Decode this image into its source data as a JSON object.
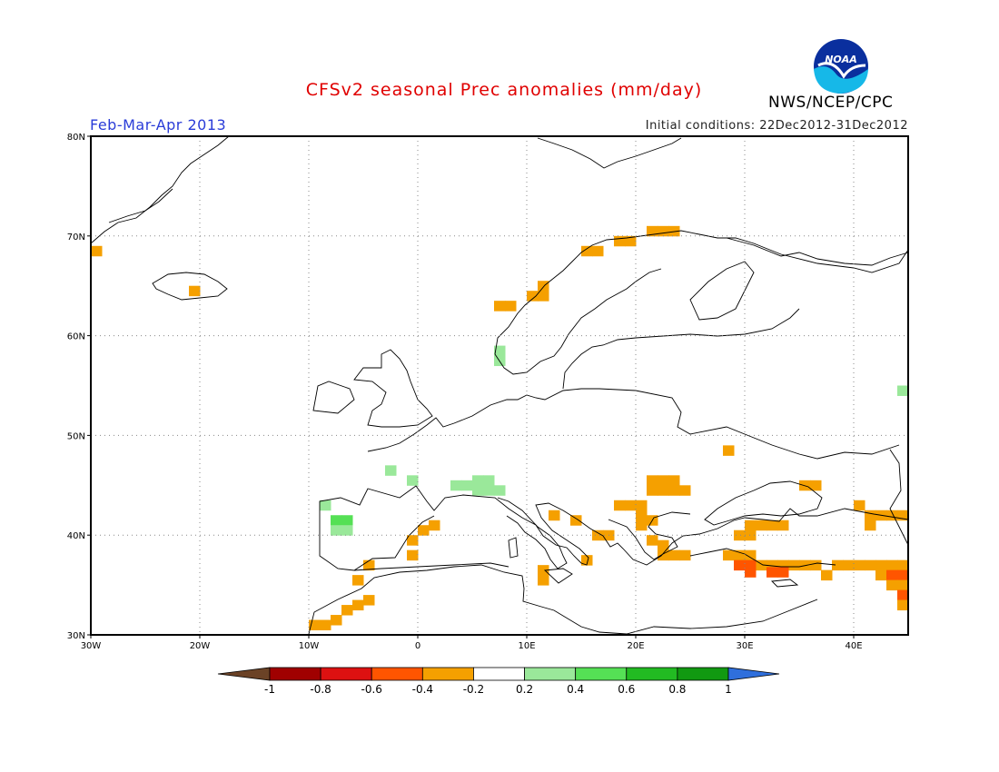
{
  "title": "CFSv2 seasonal Prec anomalies (mm/day)",
  "organization": "NWS/NCEP/CPC",
  "logo_text": "NOAA",
  "season": "Feb-Mar-Apr 2013",
  "initial_conditions": "Initial conditions: 22Dec2012-31Dec2012",
  "map": {
    "lon_range": [
      -30,
      45
    ],
    "lat_range": [
      30,
      80
    ],
    "lon_ticks": [
      {
        "v": -30,
        "label": "30W"
      },
      {
        "v": -20,
        "label": "20W"
      },
      {
        "v": -10,
        "label": "10W"
      },
      {
        "v": 0,
        "label": "0"
      },
      {
        "v": 10,
        "label": "10E"
      },
      {
        "v": 20,
        "label": "20E"
      },
      {
        "v": 30,
        "label": "30E"
      },
      {
        "v": 40,
        "label": "40E"
      }
    ],
    "lat_ticks": [
      {
        "v": 30,
        "label": "30N"
      },
      {
        "v": 40,
        "label": "40N"
      },
      {
        "v": 50,
        "label": "50N"
      },
      {
        "v": 60,
        "label": "60N"
      },
      {
        "v": 70,
        "label": "70N"
      },
      {
        "v": 80,
        "label": "80N"
      }
    ],
    "anomaly_cells": [
      {
        "lon": -30,
        "lat": 68.5,
        "c": "#f5a000"
      },
      {
        "lon": -21,
        "lat": 64.5,
        "c": "#f5a000"
      },
      {
        "lon": -8,
        "lat": 41.5,
        "c": "#55e055"
      },
      {
        "lon": -7,
        "lat": 41.5,
        "c": "#55e055"
      },
      {
        "lon": -8,
        "lat": 40.5,
        "c": "#9ae89a"
      },
      {
        "lon": -7,
        "lat": 40.5,
        "c": "#9ae89a"
      },
      {
        "lon": -9,
        "lat": 43,
        "c": "#9ae89a"
      },
      {
        "lon": -10,
        "lat": 31,
        "c": "#f5a000"
      },
      {
        "lon": -9,
        "lat": 31,
        "c": "#f5a000"
      },
      {
        "lon": -8,
        "lat": 31.5,
        "c": "#f5a000"
      },
      {
        "lon": -7,
        "lat": 32.5,
        "c": "#f5a000"
      },
      {
        "lon": -6,
        "lat": 33,
        "c": "#f5a000"
      },
      {
        "lon": -5,
        "lat": 33.5,
        "c": "#f5a000"
      },
      {
        "lon": -6,
        "lat": 35.5,
        "c": "#f5a000"
      },
      {
        "lon": -5,
        "lat": 37,
        "c": "#f5a000"
      },
      {
        "lon": -1,
        "lat": 38,
        "c": "#f5a000"
      },
      {
        "lon": -1,
        "lat": 39.5,
        "c": "#f5a000"
      },
      {
        "lon": 0,
        "lat": 40.5,
        "c": "#f5a000"
      },
      {
        "lon": 1,
        "lat": 41,
        "c": "#f5a000"
      },
      {
        "lon": -3,
        "lat": 46.5,
        "c": "#9ae89a"
      },
      {
        "lon": -1,
        "lat": 45.5,
        "c": "#9ae89a"
      },
      {
        "lon": 3,
        "lat": 45,
        "c": "#9ae89a"
      },
      {
        "lon": 4,
        "lat": 45,
        "c": "#9ae89a"
      },
      {
        "lon": 5,
        "lat": 45.5,
        "c": "#9ae89a"
      },
      {
        "lon": 5,
        "lat": 44.5,
        "c": "#9ae89a"
      },
      {
        "lon": 6,
        "lat": 44.5,
        "c": "#9ae89a"
      },
      {
        "lon": 7,
        "lat": 44.5,
        "c": "#9ae89a"
      },
      {
        "lon": 6,
        "lat": 45.5,
        "c": "#9ae89a"
      },
      {
        "lon": 7,
        "lat": 58.5,
        "c": "#9ae89a"
      },
      {
        "lon": 7,
        "lat": 57.5,
        "c": "#9ae89a"
      },
      {
        "lon": 7,
        "lat": 63,
        "c": "#f5a000"
      },
      {
        "lon": 8,
        "lat": 63,
        "c": "#f5a000"
      },
      {
        "lon": 10,
        "lat": 64,
        "c": "#f5a000"
      },
      {
        "lon": 11,
        "lat": 64,
        "c": "#f5a000"
      },
      {
        "lon": 11,
        "lat": 65,
        "c": "#f5a000"
      },
      {
        "lon": 15,
        "lat": 68.5,
        "c": "#f5a000"
      },
      {
        "lon": 16,
        "lat": 68.5,
        "c": "#f5a000"
      },
      {
        "lon": 18,
        "lat": 69.5,
        "c": "#f5a000"
      },
      {
        "lon": 19,
        "lat": 69.5,
        "c": "#f5a000"
      },
      {
        "lon": 21,
        "lat": 70.5,
        "c": "#f5a000"
      },
      {
        "lon": 22,
        "lat": 70.5,
        "c": "#f5a000"
      },
      {
        "lon": 23,
        "lat": 70.5,
        "c": "#f5a000"
      },
      {
        "lon": 11,
        "lat": 36.5,
        "c": "#f5a000"
      },
      {
        "lon": 11,
        "lat": 35.5,
        "c": "#f5a000"
      },
      {
        "lon": 12,
        "lat": 42,
        "c": "#f5a000"
      },
      {
        "lon": 14,
        "lat": 41.5,
        "c": "#f5a000"
      },
      {
        "lon": 15,
        "lat": 37.5,
        "c": "#f5a000"
      },
      {
        "lon": 16,
        "lat": 40,
        "c": "#f5a000"
      },
      {
        "lon": 17,
        "lat": 40,
        "c": "#f5a000"
      },
      {
        "lon": 18,
        "lat": 43,
        "c": "#f5a000"
      },
      {
        "lon": 19,
        "lat": 43,
        "c": "#f5a000"
      },
      {
        "lon": 20,
        "lat": 43,
        "c": "#f5a000"
      },
      {
        "lon": 20,
        "lat": 42,
        "c": "#f5a000"
      },
      {
        "lon": 20,
        "lat": 41,
        "c": "#f5a000"
      },
      {
        "lon": 21,
        "lat": 41.5,
        "c": "#f5a000"
      },
      {
        "lon": 21,
        "lat": 45.5,
        "c": "#f5a000"
      },
      {
        "lon": 22,
        "lat": 45.5,
        "c": "#f5a000"
      },
      {
        "lon": 23,
        "lat": 45.5,
        "c": "#f5a000"
      },
      {
        "lon": 21,
        "lat": 44.5,
        "c": "#f5a000"
      },
      {
        "lon": 22,
        "lat": 44.5,
        "c": "#f5a000"
      },
      {
        "lon": 23,
        "lat": 44.5,
        "c": "#f5a000"
      },
      {
        "lon": 24,
        "lat": 44.5,
        "c": "#f5a000"
      },
      {
        "lon": 21,
        "lat": 39.5,
        "c": "#f5a000"
      },
      {
        "lon": 22,
        "lat": 39,
        "c": "#f5a000"
      },
      {
        "lon": 22,
        "lat": 38,
        "c": "#f5a000"
      },
      {
        "lon": 23,
        "lat": 38,
        "c": "#f5a000"
      },
      {
        "lon": 24,
        "lat": 38,
        "c": "#f5a000"
      },
      {
        "lon": 28,
        "lat": 48.5,
        "c": "#f5a000"
      },
      {
        "lon": 29,
        "lat": 40,
        "c": "#f5a000"
      },
      {
        "lon": 30,
        "lat": 40,
        "c": "#f5a000"
      },
      {
        "lon": 30,
        "lat": 41,
        "c": "#f5a000"
      },
      {
        "lon": 31,
        "lat": 41,
        "c": "#f5a000"
      },
      {
        "lon": 32,
        "lat": 41,
        "c": "#f5a000"
      },
      {
        "lon": 33,
        "lat": 41,
        "c": "#f5a000"
      },
      {
        "lon": 35,
        "lat": 45,
        "c": "#f5a000"
      },
      {
        "lon": 36,
        "lat": 45,
        "c": "#f5a000"
      },
      {
        "lon": 28,
        "lat": 38,
        "c": "#f5a000"
      },
      {
        "lon": 29,
        "lat": 38,
        "c": "#f5a000"
      },
      {
        "lon": 30,
        "lat": 38,
        "c": "#f5a000"
      },
      {
        "lon": 31,
        "lat": 37,
        "c": "#f5a000"
      },
      {
        "lon": 29,
        "lat": 37,
        "c": "#ff5500"
      },
      {
        "lon": 30,
        "lat": 37,
        "c": "#ff5500"
      },
      {
        "lon": 30,
        "lat": 36.3,
        "c": "#ff5500"
      },
      {
        "lon": 32,
        "lat": 37,
        "c": "#f5a000"
      },
      {
        "lon": 33,
        "lat": 37,
        "c": "#f5a000"
      },
      {
        "lon": 34,
        "lat": 37,
        "c": "#f5a000"
      },
      {
        "lon": 35,
        "lat": 37,
        "c": "#f5a000"
      },
      {
        "lon": 36,
        "lat": 37,
        "c": "#f5a000"
      },
      {
        "lon": 37,
        "lat": 36,
        "c": "#f5a000"
      },
      {
        "lon": 32,
        "lat": 36.3,
        "c": "#ff5500"
      },
      {
        "lon": 33,
        "lat": 36.3,
        "c": "#ff5500"
      },
      {
        "lon": 38,
        "lat": 37,
        "c": "#f5a000"
      },
      {
        "lon": 39,
        "lat": 37,
        "c": "#f5a000"
      },
      {
        "lon": 40,
        "lat": 37,
        "c": "#f5a000"
      },
      {
        "lon": 41,
        "lat": 37,
        "c": "#f5a000"
      },
      {
        "lon": 42,
        "lat": 37,
        "c": "#f5a000"
      },
      {
        "lon": 43,
        "lat": 37,
        "c": "#f5a000"
      },
      {
        "lon": 44,
        "lat": 37,
        "c": "#f5a000"
      },
      {
        "lon": 42,
        "lat": 36,
        "c": "#f5a000"
      },
      {
        "lon": 43,
        "lat": 36,
        "c": "#ff5500"
      },
      {
        "lon": 44,
        "lat": 36,
        "c": "#ff5500"
      },
      {
        "lon": 44,
        "lat": 35,
        "c": "#f5a000"
      },
      {
        "lon": 43,
        "lat": 35,
        "c": "#f5a000"
      },
      {
        "lon": 44,
        "lat": 34,
        "c": "#ff5500"
      },
      {
        "lon": 44,
        "lat": 33,
        "c": "#f5a000"
      },
      {
        "lon": 41,
        "lat": 42,
        "c": "#f5a000"
      },
      {
        "lon": 42,
        "lat": 42,
        "c": "#f5a000"
      },
      {
        "lon": 43,
        "lat": 42,
        "c": "#f5a000"
      },
      {
        "lon": 44,
        "lat": 42,
        "c": "#f5a000"
      },
      {
        "lon": 40,
        "lat": 43,
        "c": "#f5a000"
      },
      {
        "lon": 41,
        "lat": 41,
        "c": "#f5a000"
      },
      {
        "lon": 44,
        "lat": 54.5,
        "c": "#9ae89a"
      }
    ]
  },
  "colorbar": {
    "below_color": "#6b4226",
    "above_color": "#2f6fdc",
    "bins": [
      "#a00000",
      "#dd1111",
      "#ff5500",
      "#f5a000",
      "#ffffff",
      "#9ae89a",
      "#55e055",
      "#22bb22",
      "#119911"
    ],
    "labels": [
      "-1",
      "-0.8",
      "-0.6",
      "-0.4",
      "-0.2",
      "0.2",
      "0.4",
      "0.6",
      "0.8",
      "1"
    ]
  }
}
